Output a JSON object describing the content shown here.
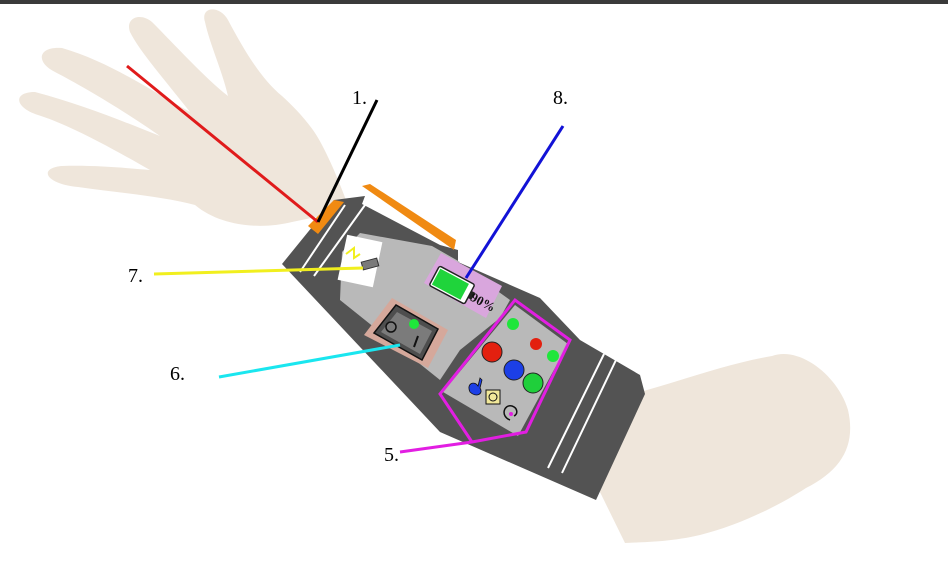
{
  "labels": {
    "label_1": "1.",
    "label_5": "5.",
    "label_6": "6.",
    "label_7": "7.",
    "label_8": "8."
  },
  "battery": {
    "text": "90%",
    "level_percent": 90
  },
  "colors": {
    "skin": "#efe6db",
    "band": "#535353",
    "panel": "#b9b9b9",
    "accent_orange": "#f08a12",
    "leader_red": "#e01b1b",
    "leader_black": "#000000",
    "leader_yellow": "#f1ef1e",
    "leader_cyan": "#1ae6ef",
    "leader_blue": "#1212d6",
    "leader_magenta": "#e21ee2",
    "battery_panel": "#d9a6dd",
    "switch_panel": "#d5a89b",
    "button_red": "#e3200f",
    "button_blue": "#1c3fe6",
    "button_green": "#1fcf3b"
  }
}
